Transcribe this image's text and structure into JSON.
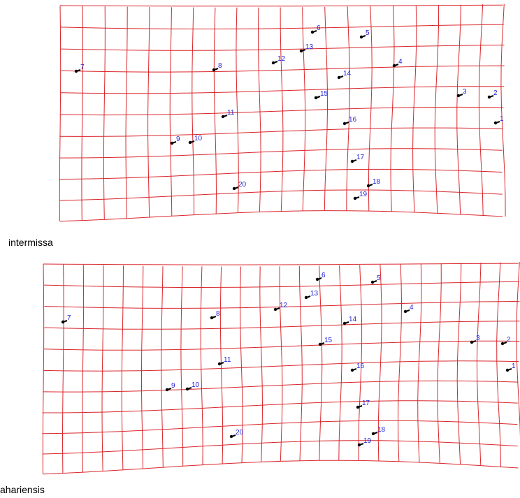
{
  "panels": [
    {
      "id": "top",
      "caption": "intermissa",
      "landmarks": [
        {
          "id": "1",
          "label": "1"
        },
        {
          "id": "2",
          "label": "2"
        },
        {
          "id": "3",
          "label": "3"
        },
        {
          "id": "4",
          "label": "4"
        },
        {
          "id": "5",
          "label": "5"
        },
        {
          "id": "6",
          "label": "6"
        },
        {
          "id": "7",
          "label": "7"
        },
        {
          "id": "8",
          "label": "8"
        },
        {
          "id": "9",
          "label": "9"
        },
        {
          "id": "10",
          "label": "10"
        },
        {
          "id": "11",
          "label": "11"
        },
        {
          "id": "12",
          "label": "12"
        },
        {
          "id": "13",
          "label": "13"
        },
        {
          "id": "14",
          "label": "14"
        },
        {
          "id": "15",
          "label": "15"
        },
        {
          "id": "16",
          "label": "16"
        },
        {
          "id": "17",
          "label": "17"
        },
        {
          "id": "18",
          "label": "18"
        },
        {
          "id": "19",
          "label": "19"
        },
        {
          "id": "20",
          "label": "20"
        }
      ]
    },
    {
      "id": "bottom",
      "caption": "ahariensis",
      "landmarks": [
        {
          "id": "1",
          "label": "1"
        },
        {
          "id": "2",
          "label": "2"
        },
        {
          "id": "3",
          "label": "3"
        },
        {
          "id": "4",
          "label": "4"
        },
        {
          "id": "5",
          "label": "5"
        },
        {
          "id": "6",
          "label": "6"
        },
        {
          "id": "7",
          "label": "7"
        },
        {
          "id": "8",
          "label": "8"
        },
        {
          "id": "9",
          "label": "9"
        },
        {
          "id": "10",
          "label": "10"
        },
        {
          "id": "11",
          "label": "11"
        },
        {
          "id": "12",
          "label": "12"
        },
        {
          "id": "13",
          "label": "13"
        },
        {
          "id": "14",
          "label": "14"
        },
        {
          "id": "15",
          "label": "15"
        },
        {
          "id": "16",
          "label": "16"
        },
        {
          "id": "17",
          "label": "17"
        },
        {
          "id": "18",
          "label": "18"
        },
        {
          "id": "19",
          "label": "19"
        },
        {
          "id": "20",
          "label": "20"
        }
      ]
    }
  ],
  "colors": {
    "grid": "#d9262b",
    "landmark_label": "#1f1fd6",
    "vector": "#000000",
    "caption": "#000000"
  }
}
